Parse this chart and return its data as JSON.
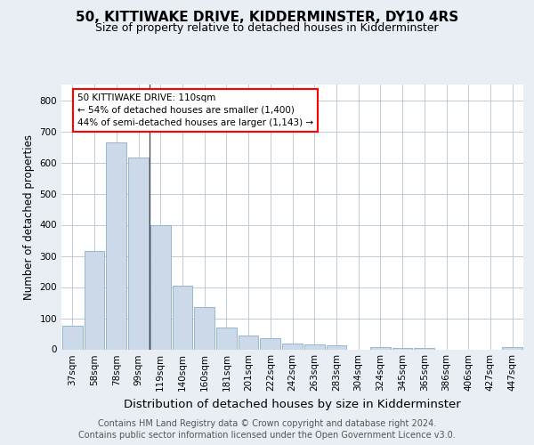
{
  "title": "50, KITTIWAKE DRIVE, KIDDERMINSTER, DY10 4RS",
  "subtitle": "Size of property relative to detached houses in Kidderminster",
  "xlabel": "Distribution of detached houses by size in Kidderminster",
  "ylabel": "Number of detached properties",
  "categories": [
    "37sqm",
    "58sqm",
    "78sqm",
    "99sqm",
    "119sqm",
    "140sqm",
    "160sqm",
    "181sqm",
    "201sqm",
    "222sqm",
    "242sqm",
    "263sqm",
    "283sqm",
    "304sqm",
    "324sqm",
    "345sqm",
    "365sqm",
    "386sqm",
    "406sqm",
    "427sqm",
    "447sqm"
  ],
  "values": [
    75,
    315,
    665,
    615,
    400,
    203,
    135,
    70,
    45,
    37,
    20,
    15,
    12,
    0,
    8,
    5,
    5,
    0,
    0,
    0,
    7
  ],
  "bar_color": "#ccd9e8",
  "bar_edge_color": "#8aafc8",
  "vline_x_idx": 3.5,
  "annotation_box_text": "50 KITTIWAKE DRIVE: 110sqm\n← 54% of detached houses are smaller (1,400)\n44% of semi-detached houses are larger (1,143) →",
  "ylim": [
    0,
    850
  ],
  "yticks": [
    0,
    100,
    200,
    300,
    400,
    500,
    600,
    700,
    800
  ],
  "footer_text": "Contains HM Land Registry data © Crown copyright and database right 2024.\nContains public sector information licensed under the Open Government Licence v3.0.",
  "bg_color": "#e8eef4",
  "plot_bg_color": "#ffffff",
  "grid_color": "#c0cdd8",
  "title_fontsize": 11,
  "subtitle_fontsize": 9,
  "xlabel_fontsize": 9.5,
  "ylabel_fontsize": 8.5,
  "tick_fontsize": 7.5,
  "footer_fontsize": 7,
  "ann_fontsize": 7.5
}
